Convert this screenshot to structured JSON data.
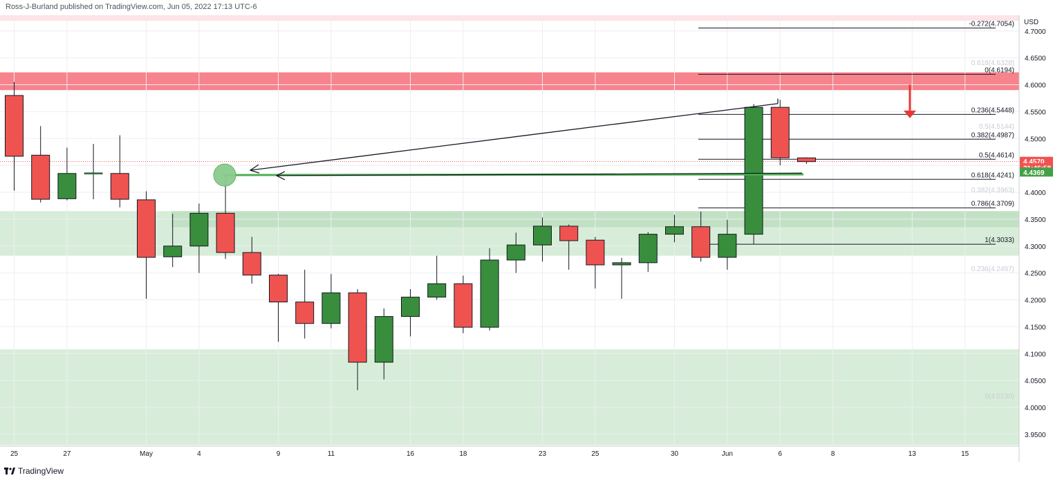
{
  "header": {
    "published_by": "Ross-J-Burland published on TradingView.com, Jun 05, 2022 17:13 UTC-6"
  },
  "footer": {
    "brand": "TradingView",
    "logo_icon": "tradingview-logo-icon"
  },
  "chart_data": {
    "type": "candlestick",
    "currency_label": "USD",
    "y_ticks": [
      "4.7000",
      "4.6500",
      "4.6000",
      "4.5500",
      "4.5000",
      "4.4500",
      "4.4000",
      "4.3500",
      "4.3000",
      "4.2500",
      "4.2000",
      "4.1500",
      "4.1000",
      "4.0500",
      "4.0000",
      "3.9500"
    ],
    "x_ticks": [
      {
        "i": 0,
        "label": "25"
      },
      {
        "i": 2,
        "label": "27"
      },
      {
        "i": 5,
        "label": "May"
      },
      {
        "i": 7,
        "label": "4"
      },
      {
        "i": 10,
        "label": "9"
      },
      {
        "i": 12,
        "label": "11"
      },
      {
        "i": 15,
        "label": "16"
      },
      {
        "i": 17,
        "label": "18"
      },
      {
        "i": 20,
        "label": "23"
      },
      {
        "i": 22,
        "label": "25"
      },
      {
        "i": 25,
        "label": "30"
      },
      {
        "i": 27,
        "label": "Jun"
      },
      {
        "i": 29,
        "label": "6"
      },
      {
        "i": 31,
        "label": "8"
      },
      {
        "i": 34,
        "label": "13"
      },
      {
        "i": 36,
        "label": "15"
      }
    ],
    "candles": [
      {
        "o": 4.58,
        "h": 4.605,
        "l": 4.403,
        "c": 4.467
      },
      {
        "o": 4.469,
        "h": 4.523,
        "l": 4.381,
        "c": 4.387
      },
      {
        "o": 4.388,
        "h": 4.483,
        "l": 4.385,
        "c": 4.435
      },
      {
        "o": 4.435,
        "h": 4.49,
        "l": 4.387,
        "c": 4.435
      },
      {
        "o": 4.435,
        "h": 4.506,
        "l": 4.372,
        "c": 4.387
      },
      {
        "o": 4.386,
        "h": 4.402,
        "l": 4.202,
        "c": 4.279
      },
      {
        "o": 4.28,
        "h": 4.36,
        "l": 4.261,
        "c": 4.3
      },
      {
        "o": 4.3,
        "h": 4.379,
        "l": 4.25,
        "c": 4.361
      },
      {
        "o": 4.361,
        "h": 4.431,
        "l": 4.276,
        "c": 4.288
      },
      {
        "o": 4.288,
        "h": 4.317,
        "l": 4.23,
        "c": 4.246
      },
      {
        "o": 4.246,
        "h": 4.248,
        "l": 4.122,
        "c": 4.196
      },
      {
        "o": 4.196,
        "h": 4.256,
        "l": 4.128,
        "c": 4.156
      },
      {
        "o": 4.156,
        "h": 4.248,
        "l": 4.147,
        "c": 4.213
      },
      {
        "o": 4.213,
        "h": 4.22,
        "l": 4.032,
        "c": 4.084
      },
      {
        "o": 4.084,
        "h": 4.184,
        "l": 4.052,
        "c": 4.169
      },
      {
        "o": 4.169,
        "h": 4.22,
        "l": 4.132,
        "c": 4.205
      },
      {
        "o": 4.205,
        "h": 4.282,
        "l": 4.2,
        "c": 4.23
      },
      {
        "o": 4.23,
        "h": 4.245,
        "l": 4.138,
        "c": 4.149
      },
      {
        "o": 4.149,
        "h": 4.296,
        "l": 4.143,
        "c": 4.274
      },
      {
        "o": 4.274,
        "h": 4.325,
        "l": 4.25,
        "c": 4.302
      },
      {
        "o": 4.302,
        "h": 4.353,
        "l": 4.271,
        "c": 4.337
      },
      {
        "o": 4.337,
        "h": 4.34,
        "l": 4.256,
        "c": 4.31
      },
      {
        "o": 4.311,
        "h": 4.317,
        "l": 4.221,
        "c": 4.265
      },
      {
        "o": 4.265,
        "h": 4.278,
        "l": 4.202,
        "c": 4.269
      },
      {
        "o": 4.269,
        "h": 4.326,
        "l": 4.252,
        "c": 4.322
      },
      {
        "o": 4.322,
        "h": 4.358,
        "l": 4.307,
        "c": 4.336
      },
      {
        "o": 4.336,
        "h": 4.364,
        "l": 4.271,
        "c": 4.279
      },
      {
        "o": 4.279,
        "h": 4.349,
        "l": 4.256,
        "c": 4.322
      },
      {
        "o": 4.322,
        "h": 4.564,
        "l": 4.304,
        "c": 4.558
      },
      {
        "o": 4.558,
        "h": 4.572,
        "l": 4.45,
        "c": 4.464
      },
      {
        "o": 4.464,
        "h": 4.465,
        "l": 4.453,
        "c": 4.457
      }
    ],
    "fib_levels": [
      {
        "label": "-0.272(4.7054)",
        "price": 4.7054,
        "faded": false
      },
      {
        "label": "0.618(4.6328)",
        "price": 4.6328,
        "faded": true
      },
      {
        "label": "0(4.6194)",
        "price": 4.6194,
        "faded": false
      },
      {
        "label": "0.236(4.5448)",
        "price": 4.5448,
        "faded": false
      },
      {
        "label": "0.5(4.5144)",
        "price": 4.5144,
        "faded": true
      },
      {
        "label": "0.382(4.4987)",
        "price": 4.4987,
        "faded": false
      },
      {
        "label": "0.5(4.4614)",
        "price": 4.4614,
        "faded": false
      },
      {
        "label": "0.618(4.4241)",
        "price": 4.4241,
        "faded": false
      },
      {
        "label": "0.382(4.3963)",
        "price": 4.3963,
        "faded": true
      },
      {
        "label": "0.786(4.3709)",
        "price": 4.3709,
        "faded": false
      },
      {
        "label": "1(4.3033)",
        "price": 4.3033,
        "faded": false
      },
      {
        "label": "0.236(4.2497)",
        "price": 4.2497,
        "faded": true
      },
      {
        "label": "0(4.0130)",
        "price": 4.013,
        "faded": true
      }
    ],
    "zones": [
      {
        "name": "resistance",
        "from": 4.59,
        "to": 4.623,
        "color": "#f77c86"
      },
      {
        "name": "support-upper",
        "from": 4.282,
        "to": 4.365,
        "color": "#d6ecd7"
      },
      {
        "name": "support-lower",
        "from": 3.93,
        "to": 4.108,
        "color": "#d6ecd7"
      }
    ],
    "price_labels": [
      {
        "text": "4.4570",
        "price": 4.457,
        "color": "#ef5350"
      },
      {
        "text": "21:46:58",
        "price": 4.445,
        "color": "#ef5350"
      },
      {
        "text": "4.4369",
        "price": 4.4369,
        "color": "#43a047"
      }
    ],
    "colors": {
      "up": "#388e3c",
      "down": "#ef5350",
      "outline": "#131722",
      "green_line": "#4caf50",
      "arrow": "#e53935"
    }
  }
}
